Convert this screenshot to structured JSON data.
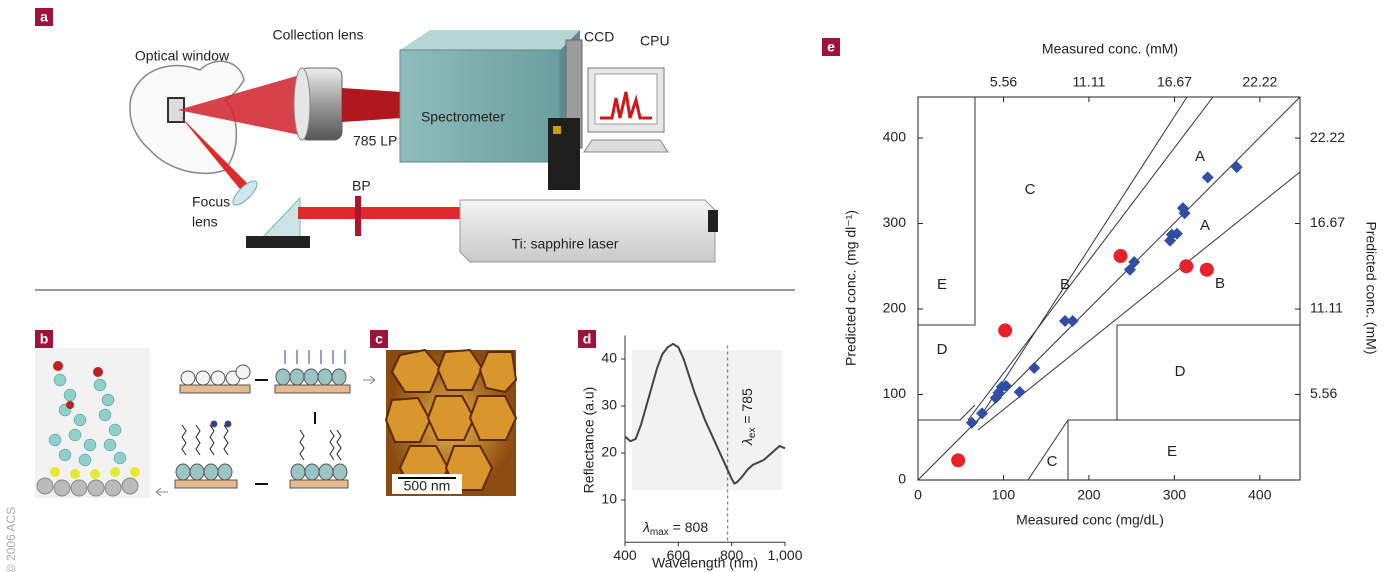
{
  "panels": {
    "a": {
      "label": "a",
      "optical_window": "Optical window",
      "collection_lens": "Collection lens",
      "filter": "785 LP",
      "spectrometer": "Spectrometer",
      "ccd": "CCD",
      "cpu": "CPU",
      "focus_lens": [
        "Focus",
        "lens"
      ],
      "bp": "BP",
      "laser": "Ti: sapphire laser"
    },
    "b": {
      "label": "b"
    },
    "c": {
      "label": "c",
      "scale_bar": "500 nm"
    },
    "copyright": "© 2006 ACS"
  },
  "chart_data": [
    {
      "type": "line",
      "panel_label": "d",
      "x_label": "Wavelength (nm)",
      "y_label": "Reflectance (a.u)",
      "x": [
        400,
        420,
        440,
        460,
        480,
        500,
        520,
        540,
        560,
        580,
        600,
        620,
        640,
        660,
        680,
        700,
        720,
        740,
        760,
        780,
        800,
        810,
        820,
        840,
        860,
        880,
        900,
        920,
        940,
        960,
        980,
        1000
      ],
      "series": [
        {
          "color": "#444444",
          "values": [
            23.5,
            22.5,
            23,
            26,
            30,
            34,
            38,
            41,
            42.5,
            43.2,
            42.5,
            40,
            36.5,
            33,
            30,
            27,
            24.5,
            22,
            19.5,
            17,
            14.5,
            13.5,
            13.8,
            15,
            16.5,
            17.5,
            18,
            18.5,
            19.5,
            20.5,
            21.5,
            21
          ]
        }
      ],
      "xlim": [
        400,
        1000
      ],
      "ylim": [
        1,
        45
      ],
      "xticks": [
        400,
        600,
        800,
        {
          "value": 1000,
          "label": "1,000"
        }
      ],
      "yticks": [
        10,
        20,
        30,
        40
      ],
      "annotations": [
        {
          "symbol": "λ",
          "subscript": "max",
          "text": " = 808"
        },
        {
          "symbol": "λ",
          "subscript": "ex",
          "text": " = 785",
          "value": 785
        }
      ]
    },
    {
      "type": "scatter",
      "panel_label": "e",
      "x_label": "Measured conc (mg/dL)",
      "y_label": "Predicted conc. (mg dl⁻¹)",
      "x2_label": "Measured conc. (mM)",
      "y2_label": "Predicted conc. (mM)",
      "xlim": [
        0,
        447
      ],
      "ylim": [
        0,
        448
      ],
      "xticks": [
        0,
        100,
        200,
        300,
        400
      ],
      "yticks": [
        0,
        100,
        200,
        300,
        400
      ],
      "x2lim": [
        0,
        24.83
      ],
      "x2ticks": [
        5.56,
        11.11,
        16.67,
        22.22
      ],
      "y2lim": [
        0,
        24.89
      ],
      "y2ticks": [
        5.56,
        11.11,
        16.67,
        22.22
      ],
      "series": [
        {
          "marker": "diamond",
          "color": "#2f4ea6",
          "x": [
            63,
            75,
            91,
            94,
            98,
            103,
            119,
            136,
            172,
            181,
            248,
            253,
            295,
            297,
            303,
            310,
            312,
            339,
            373
          ],
          "values": [
            67,
            78,
            96,
            102,
            109,
            110,
            103,
            131,
            186,
            186,
            246,
            255,
            280,
            287,
            288,
            318,
            312,
            354,
            366
          ]
        },
        {
          "marker": "circle",
          "color": "#e8212a",
          "x": [
            102,
            237,
            314,
            338,
            47
          ],
          "values": [
            175,
            262,
            250,
            246,
            23
          ]
        }
      ],
      "zones": [
        "A",
        "A",
        "B",
        "B",
        "C",
        "C",
        "D",
        "D",
        "E",
        "E"
      ]
    }
  ]
}
